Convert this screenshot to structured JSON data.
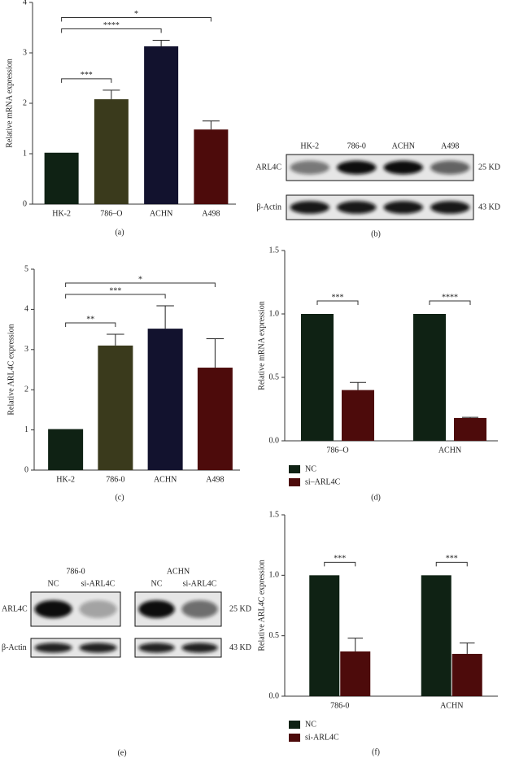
{
  "chart_data": [
    {
      "type": "bar",
      "panel_label": "(a)",
      "y_label": "Relative mRNA expression",
      "categories": [
        "HK-2",
        "786–O",
        "ACHN",
        "A498"
      ],
      "values": [
        1.02,
        2.08,
        3.13,
        1.48
      ],
      "errors": [
        null,
        0.18,
        0.12,
        0.17
      ],
      "colors": [
        "#0f2214",
        "#3a3a1c",
        "#12122e",
        "#4d0b0b"
      ],
      "ylim": [
        0,
        4
      ],
      "yticks": [
        0,
        1,
        2,
        3,
        4
      ],
      "annotations": [
        {
          "label": "***",
          "between": [
            "HK-2",
            "786–O"
          ]
        },
        {
          "label": "****",
          "between": [
            "HK-2",
            "ACHN"
          ]
        },
        {
          "label": "*",
          "between": [
            "HK-2",
            "A498"
          ]
        }
      ]
    },
    {
      "type": "bar",
      "panel_label": "(c)",
      "y_label": "Relative ARL4C expression",
      "categories": [
        "HK-2",
        "786-0",
        "ACHN",
        "A498"
      ],
      "values": [
        1.02,
        3.1,
        3.52,
        2.55
      ],
      "errors": [
        null,
        0.28,
        0.57,
        0.72
      ],
      "colors": [
        "#0f2214",
        "#3a3a1c",
        "#12122e",
        "#4d0b0b"
      ],
      "ylim": [
        0,
        5
      ],
      "yticks": [
        0,
        1,
        2,
        3,
        4,
        5
      ],
      "annotations": [
        {
          "label": "**",
          "between": [
            "HK-2",
            "786-0"
          ]
        },
        {
          "label": "***",
          "between": [
            "HK-2",
            "ACHN"
          ]
        },
        {
          "label": "*",
          "between": [
            "HK-2",
            "A498"
          ]
        }
      ]
    },
    {
      "type": "bar",
      "panel_label": "(d)",
      "y_label": "Relative mRNA expression",
      "categories": [
        "786–O",
        "ACHN"
      ],
      "series": [
        {
          "name": "NC",
          "color": "#0f2214",
          "values": [
            1.0,
            1.0
          ],
          "errors": [
            null,
            null
          ]
        },
        {
          "name": "si–ARL4C",
          "color": "#4d0b0b",
          "values": [
            0.4,
            0.18
          ],
          "errors": [
            0.06,
            0.005
          ]
        }
      ],
      "ylim": [
        0,
        1.5
      ],
      "yticks": [
        {
          "value": 0,
          "label": "0.0"
        },
        0.5,
        {
          "value": 1,
          "label": "1.0"
        },
        1.5
      ],
      "annotations": [
        {
          "label": "***",
          "category": "786–O"
        },
        {
          "label": "****",
          "category": "ACHN"
        }
      ]
    },
    {
      "type": "bar",
      "panel_label": "(f)",
      "y_label": "Relative ARL4C expression",
      "categories": [
        "786-0",
        "ACHN"
      ],
      "series": [
        {
          "name": "NC",
          "color": "#0f2214",
          "values": [
            1.0,
            1.0
          ],
          "errors": [
            null,
            null
          ]
        },
        {
          "name": "si-ARL4C",
          "color": "#4d0b0b",
          "values": [
            0.37,
            0.35
          ],
          "errors": [
            0.11,
            0.09
          ]
        }
      ],
      "ylim": [
        0,
        1.5
      ],
      "yticks": [
        {
          "value": 0,
          "label": "0.0"
        },
        0.5,
        {
          "value": 1,
          "label": "1.0"
        },
        1.5
      ],
      "annotations": [
        {
          "label": "***",
          "category": "786-0"
        },
        {
          "label": "***",
          "category": "ACHN"
        }
      ]
    }
  ],
  "blots": [
    {
      "panel_label": "(b)",
      "groups": [
        {
          "lanes": [
            "HK-2",
            "786-0",
            "ACHN",
            "A498"
          ]
        }
      ],
      "rows": [
        {
          "label": "ARL4C",
          "size": "25 KD"
        },
        {
          "label": "β-Actin",
          "size": "43 KD"
        }
      ]
    },
    {
      "panel_label": "(e)",
      "groups": [
        {
          "name": "786-0",
          "lanes": [
            "NC",
            "si-ARL4C"
          ]
        },
        {
          "name": "ACHN",
          "lanes": [
            "NC",
            "si-ARL4C"
          ]
        }
      ],
      "rows": [
        {
          "label": "ARL4C",
          "size": "25 KD"
        },
        {
          "label": "β-Actin",
          "size": "43 KD"
        }
      ]
    }
  ]
}
